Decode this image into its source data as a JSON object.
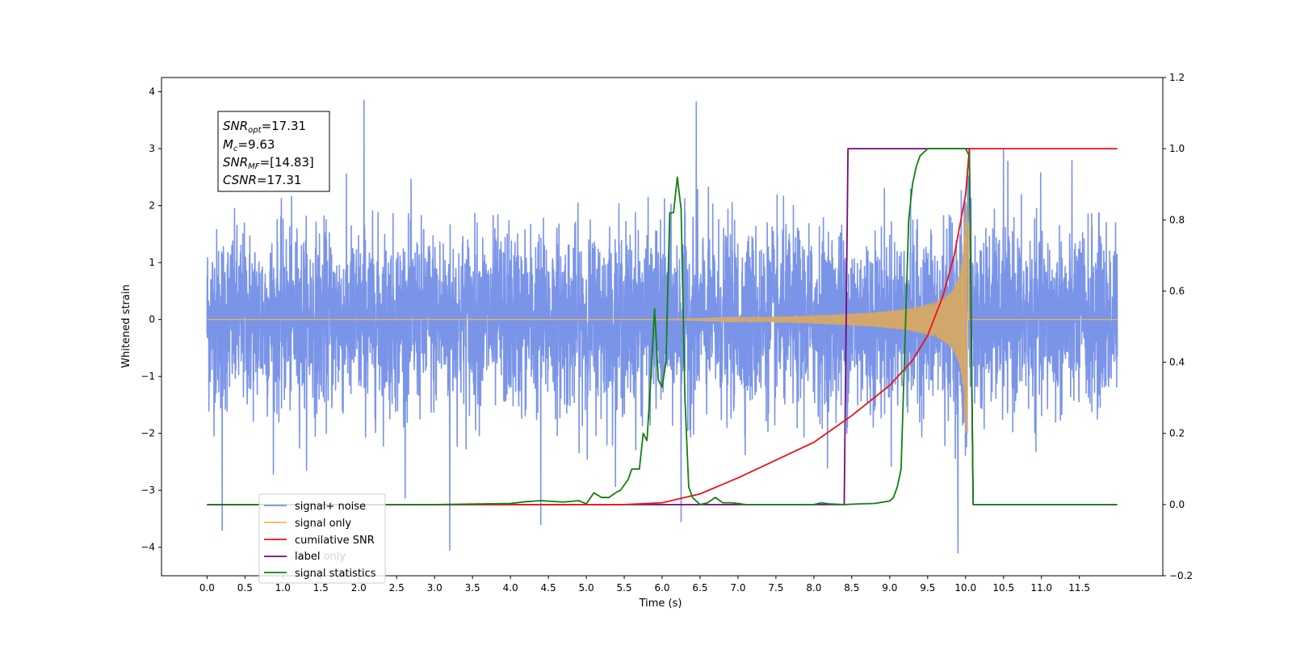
{
  "chart_data": {
    "type": "line",
    "xlabel": "Time (s)",
    "ylabel": "Whitened strain",
    "xlim": [
      -0.6,
      12.6
    ],
    "ylim_left": [
      -4.5,
      4.25
    ],
    "ylim_right": [
      -0.2,
      1.2
    ],
    "x_ticks": [
      "0.0",
      "0.5",
      "1.0",
      "1.5",
      "2.0",
      "2.5",
      "3.0",
      "3.5",
      "4.0",
      "4.5",
      "5.0",
      "5.5",
      "6.0",
      "6.5",
      "7.0",
      "7.5",
      "8.0",
      "8.5",
      "9.0",
      "9.5",
      "10.0",
      "10.5",
      "11.0",
      "11.5"
    ],
    "y_ticks_left": [
      "4",
      "3",
      "2",
      "1",
      "0",
      "−1",
      "−2",
      "−3",
      "−4"
    ],
    "y_ticks_right": [
      "1.2",
      "1.0",
      "0.8",
      "0.6",
      "0.4",
      "0.2",
      "0.0",
      "−0.2"
    ],
    "annotation": {
      "line1_base": "SNR",
      "line1_sub": "opt",
      "line1_value": "=17.31",
      "line2_base": "M",
      "line2_sub": "c",
      "line2_value": "=9.63",
      "line3_base": "SNR",
      "line3_sub": "MF",
      "line3_value": "=[14.83]",
      "line4_base": "CSNR",
      "line4_value": "=17.31"
    },
    "legend_labels": [
      "signal+ noise",
      "signal only",
      "cumilative SNR",
      "label",
      "signal statistics"
    ],
    "legend_hidden_labels": [
      "label only"
    ],
    "legend_position": "lower-left",
    "colors": {
      "signal_noise": "#7a94e8",
      "signal_only": "#f5b54a",
      "overlap": "#bd9e7c",
      "cumulative_snr": "#ee1111",
      "label": "#730b7a",
      "signal_statistics": "#118011"
    },
    "series": [
      {
        "name": "signal+ noise",
        "axis": "left",
        "x_range": [
          0.0,
          12.0
        ],
        "value_range": [
          -4.1,
          3.85
        ],
        "typical_envelope": [
          -2.0,
          2.3
        ],
        "peaks": [
          [
            2.07,
            3.85
          ],
          [
            6.45,
            3.82
          ],
          [
            0.2,
            -3.7
          ],
          [
            3.2,
            -4.05
          ],
          [
            9.9,
            -4.1
          ],
          [
            6.25,
            -3.55
          ],
          [
            4.4,
            -3.6
          ],
          [
            10.5,
            3.0
          ]
        ]
      },
      {
        "name": "signal only",
        "axis": "left",
        "x_range": [
          0.0,
          12.0
        ],
        "chirp": {
          "start": 6.0,
          "merger": 10.02,
          "peak_amplitude": 2.0
        }
      },
      {
        "name": "cumilative SNR",
        "axis": "right",
        "x": [
          0.0,
          5.5,
          6.0,
          6.5,
          7.0,
          7.5,
          8.0,
          8.5,
          9.0,
          9.3,
          9.5,
          9.7,
          9.85,
          10.0,
          10.05,
          12.0
        ],
        "y": [
          0.0,
          0.0,
          0.005,
          0.03,
          0.075,
          0.125,
          0.175,
          0.25,
          0.335,
          0.405,
          0.475,
          0.585,
          0.7,
          0.87,
          1.0,
          1.0
        ]
      },
      {
        "name": "label",
        "axis": "right",
        "x": [
          0.0,
          8.4,
          8.45,
          10.05,
          10.1,
          12.0
        ],
        "y": [
          0.0,
          0.0,
          1.0,
          1.0,
          0.0,
          0.0
        ]
      },
      {
        "name": "signal statistics",
        "axis": "right",
        "x": [
          0.0,
          3.0,
          4.0,
          4.2,
          4.4,
          4.7,
          4.9,
          5.0,
          5.1,
          5.2,
          5.3,
          5.4,
          5.45,
          5.55,
          5.6,
          5.7,
          5.75,
          5.8,
          5.85,
          5.9,
          5.95,
          6.0,
          6.05,
          6.1,
          6.15,
          6.2,
          6.25,
          6.3,
          6.35,
          6.4,
          6.5,
          6.6,
          6.7,
          6.8,
          6.9,
          7.0,
          7.1,
          7.3,
          8.0,
          8.1,
          8.2,
          8.4,
          8.6,
          8.8,
          9.0,
          9.05,
          9.1,
          9.15,
          9.2,
          9.25,
          9.3,
          9.35,
          9.4,
          9.45,
          9.5,
          9.6,
          10.0,
          10.05,
          10.1,
          10.2,
          12.0
        ],
        "y": [
          0.0,
          0.0,
          0.003,
          0.008,
          0.011,
          0.007,
          0.011,
          0.002,
          0.033,
          0.02,
          0.02,
          0.035,
          0.04,
          0.07,
          0.1,
          0.1,
          0.2,
          0.18,
          0.35,
          0.55,
          0.35,
          0.33,
          0.4,
          0.82,
          0.82,
          0.92,
          0.83,
          0.3,
          0.05,
          0.02,
          0.0,
          0.005,
          0.02,
          0.005,
          0.005,
          0.003,
          0.0,
          0.0,
          0.0,
          0.005,
          0.002,
          0.0,
          0.002,
          0.003,
          0.01,
          0.02,
          0.05,
          0.1,
          0.45,
          0.8,
          0.9,
          0.95,
          0.98,
          0.99,
          1.0,
          1.0,
          1.0,
          0.98,
          0.0,
          0.0,
          0.0
        ]
      }
    ]
  }
}
